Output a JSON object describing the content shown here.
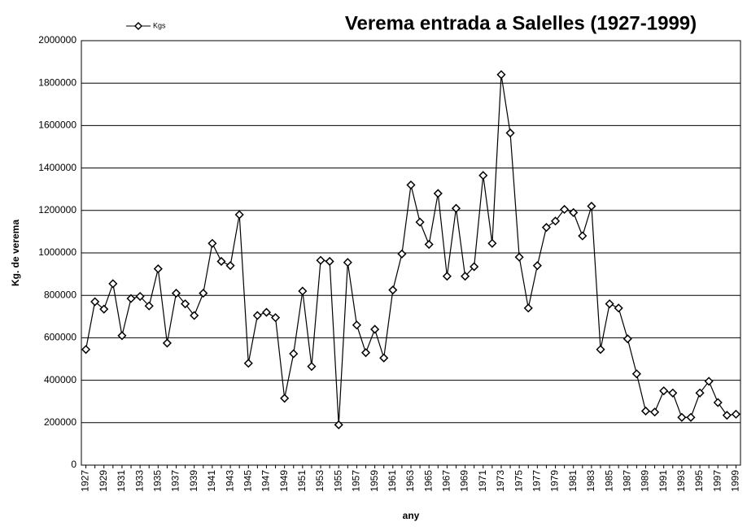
{
  "chart_data": {
    "type": "line",
    "title": "Verema entrada a Salelles (1927-1999)",
    "x_label": "any",
    "y_label": "Kg. de verema",
    "categories": [
      "1927",
      null,
      "1929",
      null,
      "1931",
      null,
      "1933",
      null,
      "1935",
      null,
      "1937",
      null,
      "1939",
      null,
      "1941",
      null,
      "1943",
      null,
      "1945",
      null,
      "1947",
      null,
      "1949",
      null,
      "1951",
      null,
      "1953",
      null,
      "1955",
      null,
      "1957",
      null,
      "1959",
      null,
      "1961",
      null,
      "1963",
      null,
      "1965",
      null,
      "1967",
      null,
      "1969",
      null,
      "1971",
      null,
      "1973",
      null,
      "1975",
      null,
      "1977",
      null,
      "1979",
      null,
      "1981",
      null,
      "1983",
      null,
      "1985",
      null,
      "1987",
      null,
      "1989",
      null,
      "1991",
      null,
      "1993",
      null,
      "1995",
      null,
      "1997",
      null,
      "1999"
    ],
    "series": [
      {
        "name": "Kgs",
        "color": "#000000",
        "values": [
          545000,
          770000,
          735000,
          855000,
          610000,
          785000,
          795000,
          750000,
          925000,
          575000,
          810000,
          760000,
          705000,
          810000,
          1045000,
          960000,
          940000,
          1180000,
          480000,
          705000,
          720000,
          695000,
          315000,
          525000,
          820000,
          465000,
          965000,
          960000,
          190000,
          955000,
          660000,
          530000,
          640000,
          505000,
          825000,
          995000,
          1320000,
          1145000,
          1040000,
          1280000,
          890000,
          1210000,
          890000,
          935000,
          1365000,
          1045000,
          1840000,
          1565000,
          980000,
          740000,
          940000,
          1120000,
          1150000,
          1205000,
          1190000,
          1080000,
          1220000,
          545000,
          760000,
          740000,
          595000,
          430000,
          255000,
          250000,
          350000,
          340000,
          225000,
          225000,
          340000,
          395000,
          295000,
          235000,
          240000
        ]
      }
    ],
    "ylim": [
      0,
      2000000
    ],
    "yticks": [
      0,
      200000,
      400000,
      600000,
      800000,
      1000000,
      1200000,
      1400000,
      1600000,
      1800000,
      2000000
    ],
    "grid": true,
    "legend": "top-left"
  }
}
